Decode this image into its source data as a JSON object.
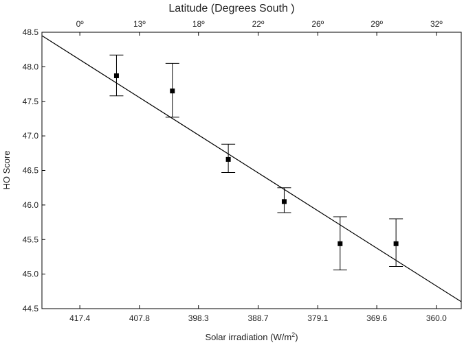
{
  "chart_data": {
    "type": "scatter",
    "title": "Latitude (Degrees South )",
    "xlabel_base": "Solar irradiation (W/m",
    "xlabel_sup": "2",
    "xlabel_tail": ")",
    "ylabel": "HO Score",
    "ylim": [
      44.5,
      48.5
    ],
    "yticks": [
      "44.5",
      "45.0",
      "45.5",
      "46.0",
      "46.5",
      "47.0",
      "47.5",
      "48.0",
      "48.5"
    ],
    "xticks_bottom": [
      "417.4",
      "407.8",
      "398.3",
      "388.7",
      "379.1",
      "369.6",
      "360.0"
    ],
    "xticks_top": [
      "0º",
      "13º",
      "18º",
      "22º",
      "26º",
      "29º",
      "32º"
    ],
    "grid": false,
    "series": [
      {
        "x": [
          411.5,
          402.5,
          393.5,
          384.5,
          375.5,
          366.5
        ],
        "y": [
          47.87,
          47.65,
          46.66,
          46.05,
          45.44,
          45.44
        ],
        "error_low": [
          47.58,
          47.27,
          46.47,
          45.89,
          45.06,
          45.11
        ],
        "error_high": [
          48.17,
          48.05,
          46.88,
          46.25,
          45.83,
          45.8
        ]
      }
    ],
    "fit_line": {
      "x": [
        423.5,
        356.0
      ],
      "y": [
        48.45,
        44.6
      ]
    },
    "colors": {
      "marker": "#000000",
      "line": "#000000",
      "axis": "#000000"
    }
  }
}
